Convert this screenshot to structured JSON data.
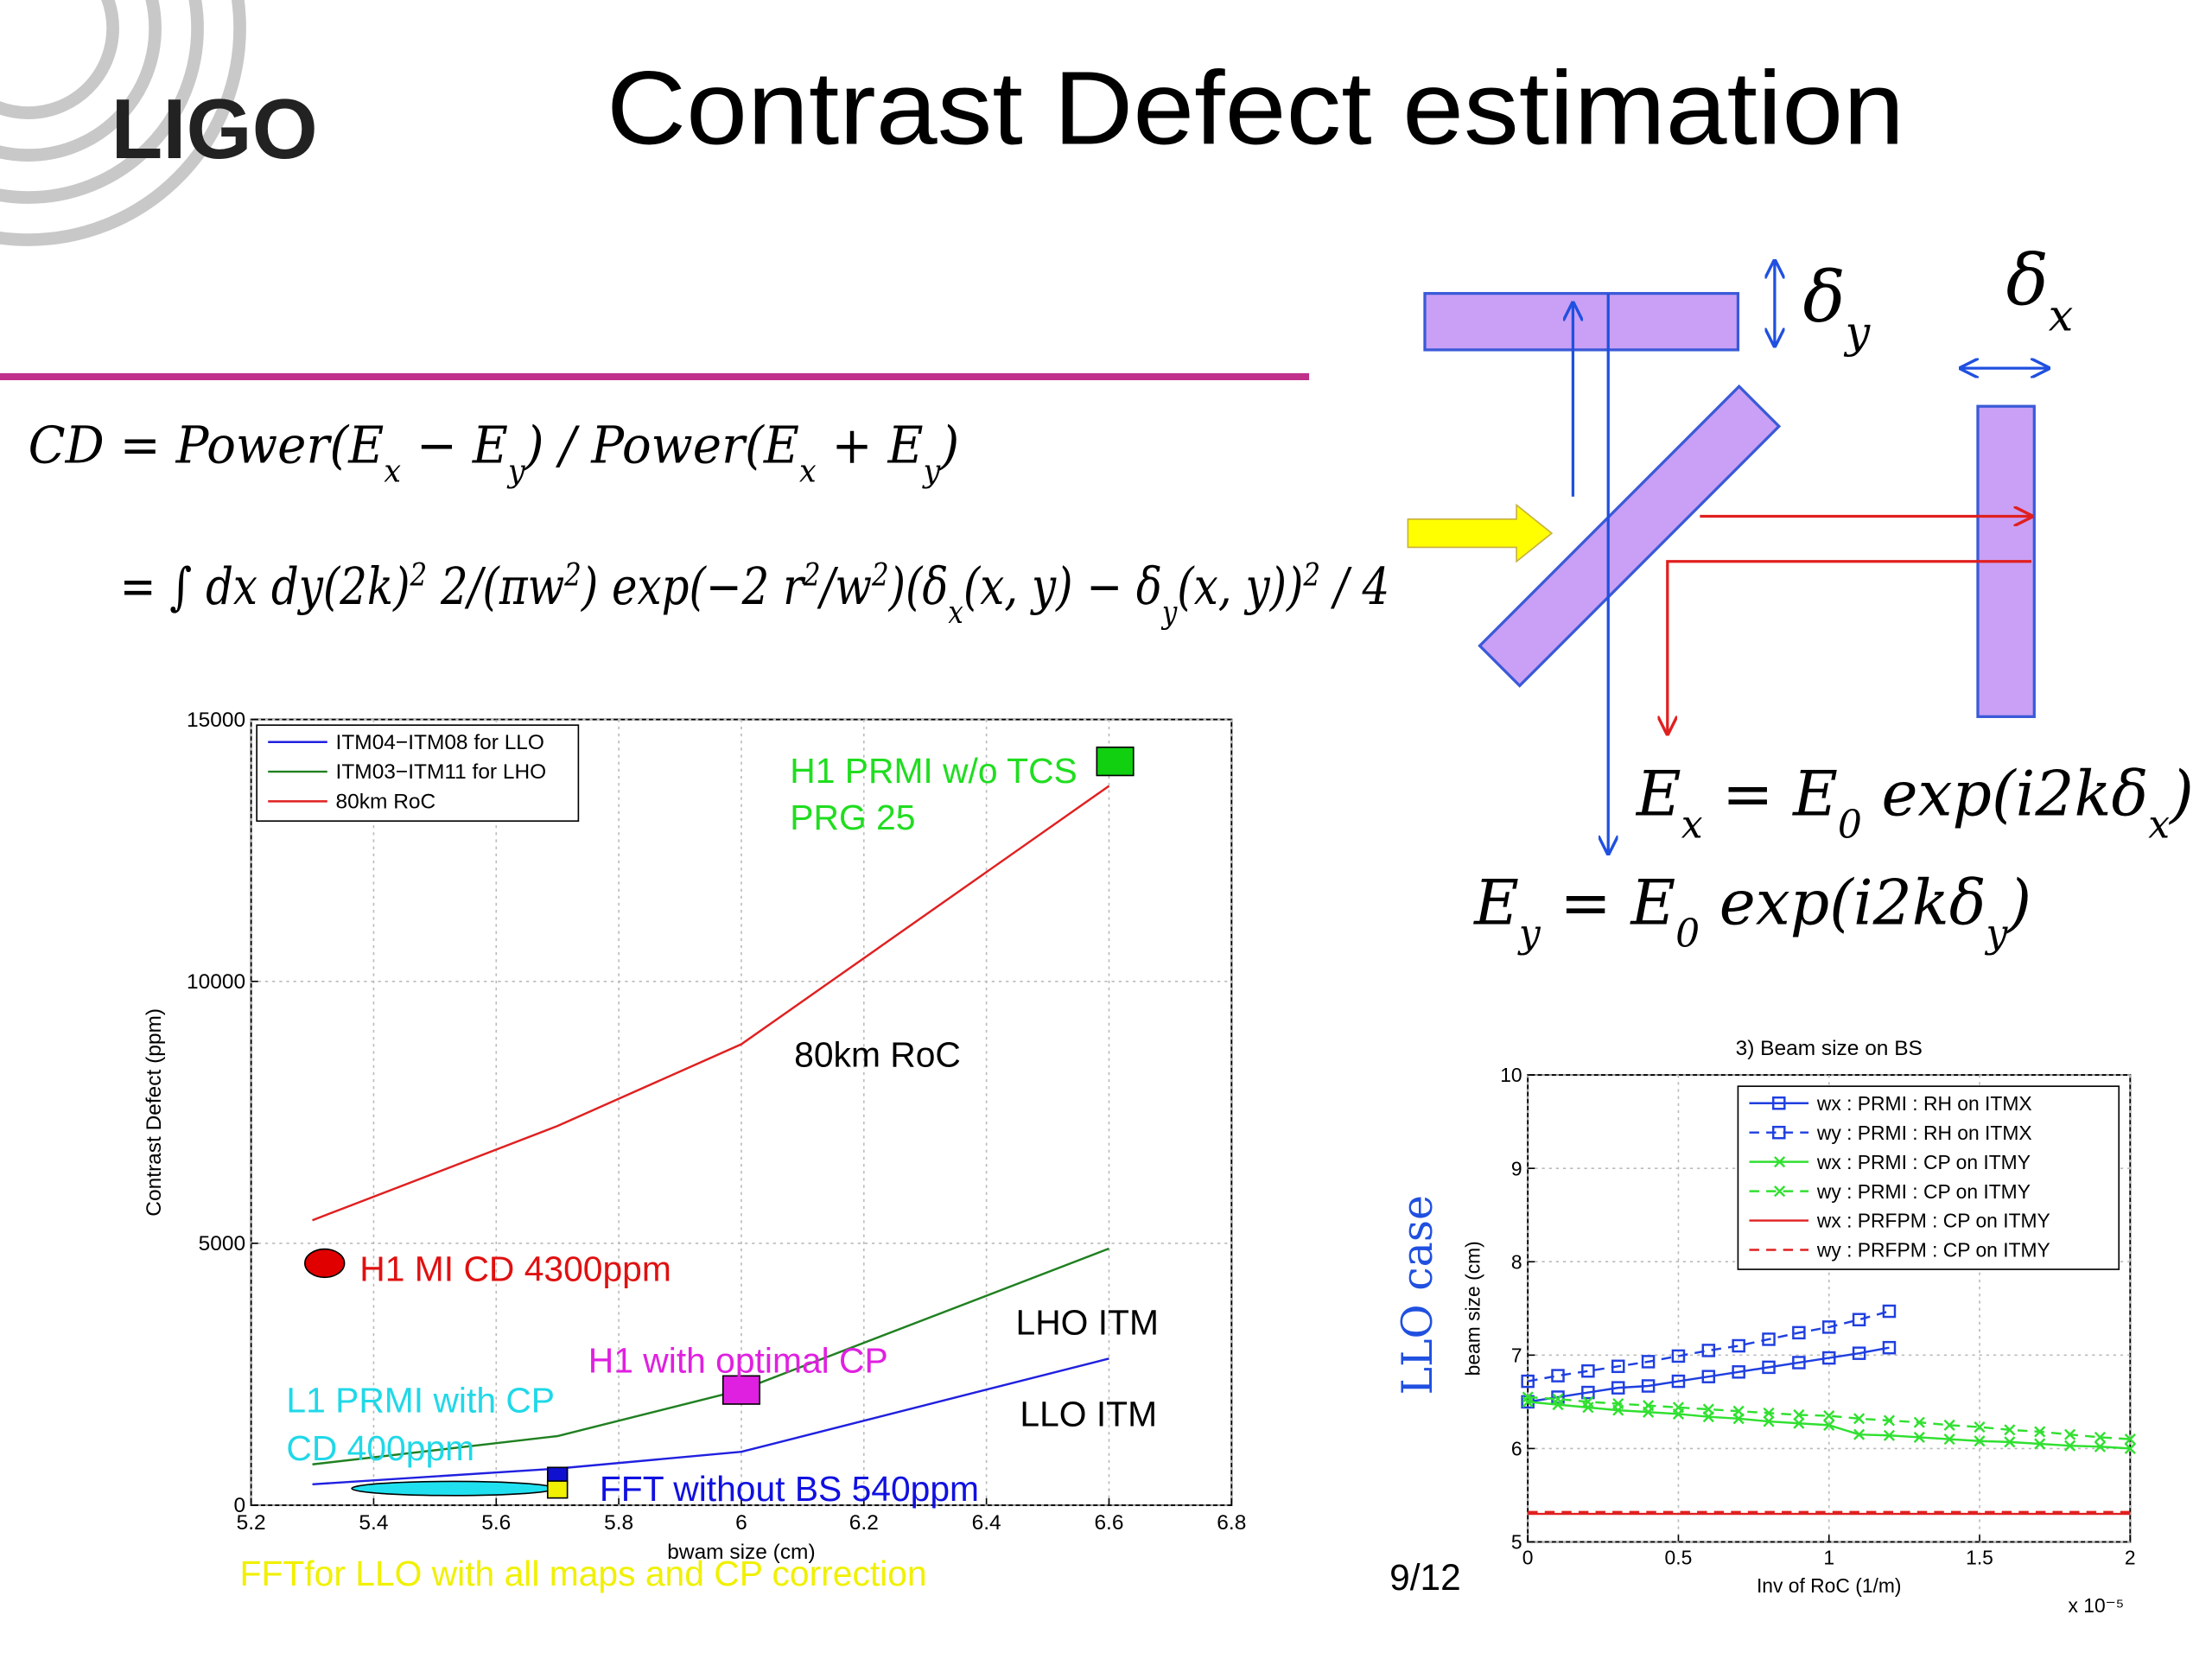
{
  "header": {
    "logo": "LIGO",
    "title": "Contrast Defect estimation"
  },
  "equations": [
    [
      {
        "text": "CD = Power(E"
      },
      {
        "text": "x",
        "pos": "sub"
      },
      {
        "text": " − E"
      },
      {
        "text": "y",
        "pos": "sub"
      },
      {
        "text": ") / Power(E"
      },
      {
        "text": "x",
        "pos": "sub"
      },
      {
        "text": " + E"
      },
      {
        "text": "y",
        "pos": "sub"
      },
      {
        "text": ")"
      }
    ],
    [
      {
        "text": "= ∫ dx dy(2k)"
      },
      {
        "text": "2",
        "pos": "sup"
      },
      {
        "text": " 2/(πw"
      },
      {
        "text": "2",
        "pos": "sup"
      },
      {
        "text": ") exp(−2 r"
      },
      {
        "text": "2",
        "pos": "sup"
      },
      {
        "text": "/w"
      },
      {
        "text": "2",
        "pos": "sup"
      },
      {
        "text": ")(δ"
      },
      {
        "text": "x",
        "pos": "sub"
      },
      {
        "text": "(x, y) − δ"
      },
      {
        "text": "y",
        "pos": "sub"
      },
      {
        "text": "(x, y))"
      },
      {
        "text": "2",
        "pos": "sup"
      },
      {
        "text": " / 4"
      }
    ]
  ],
  "diagram": {
    "delta_y": [
      {
        "text": "δ"
      },
      {
        "text": "y",
        "pos": "sub"
      }
    ],
    "delta_x": [
      {
        "text": "δ"
      },
      {
        "text": "x",
        "pos": "sub"
      }
    ],
    "field_x": [
      {
        "text": "E"
      },
      {
        "text": "x",
        "pos": "sub"
      },
      {
        "text": " = E"
      },
      {
        "text": "0",
        "pos": "sub"
      },
      {
        "text": " exp(i2kδ"
      },
      {
        "text": "x",
        "pos": "sub"
      },
      {
        "text": ")"
      }
    ],
    "field_y": [
      {
        "text": "E"
      },
      {
        "text": "y",
        "pos": "sub"
      },
      {
        "text": " = E"
      },
      {
        "text": "0",
        "pos": "sub"
      },
      {
        "text": " exp(i2kδ"
      },
      {
        "text": "y",
        "pos": "sub"
      },
      {
        "text": ")"
      }
    ]
  },
  "side_label": "LLO case",
  "page_number": "9/12",
  "chart_data": [
    {
      "type": "line",
      "xlabel": "bwam size (cm)",
      "ylabel": "Contrast Defect (ppm)",
      "x": [
        5.3,
        5.7,
        6.0,
        6.6
      ],
      "xlim": [
        5.2,
        6.8
      ],
      "xticks": [
        5.2,
        5.4,
        5.6,
        5.8,
        6,
        6.2,
        6.4,
        6.6,
        6.8
      ],
      "ylim": [
        0,
        15000
      ],
      "yticks": [
        0,
        5000,
        10000,
        15000
      ],
      "grid": true,
      "legend": "upper left",
      "series": [
        {
          "name": "ITM04−ITM08 for LLO",
          "color": "#2020e0",
          "values": [
            400,
            700,
            1020,
            2800
          ]
        },
        {
          "name": "ITM03−ITM11 for LHO",
          "color": "#208020",
          "values": [
            780,
            1320,
            2200,
            4900
          ]
        },
        {
          "name": "80km RoC",
          "color": "#e02020",
          "values": [
            5440,
            7240,
            8800,
            13730
          ]
        }
      ],
      "markers": [
        {
          "x": 5.32,
          "y": 4620,
          "color": "#e00000",
          "shape": "ellipse"
        },
        {
          "x": 6.61,
          "y": 14200,
          "color": "#10d010",
          "shape": "square"
        },
        {
          "x": 6.0,
          "y": 2200,
          "color": "#e020e0",
          "shape": "square"
        },
        {
          "x": 5.53,
          "y": 320,
          "color": "#20e0f0",
          "shape": "wide-ellipse"
        },
        {
          "x": 5.7,
          "y": 560,
          "color": "#1010d0",
          "shape": "small-square"
        },
        {
          "x": 5.7,
          "y": 300,
          "color": "#f0f000",
          "shape": "small-square"
        }
      ],
      "annotations": [
        {
          "text": "H1 PRMI w/o TCS",
          "color": "#20dd20"
        },
        {
          "text": "PRG 25",
          "color": "#20dd20"
        },
        {
          "text": "80km RoC",
          "color": "#000000"
        },
        {
          "text": "H1 MI CD 4300ppm",
          "color": "#e01010"
        },
        {
          "text": "LHO ITM",
          "color": "#000000"
        },
        {
          "text": "LLO ITM",
          "color": "#000000"
        },
        {
          "text": "H1 with optimal CP",
          "color": "#e020e0"
        },
        {
          "text": "L1 PRMI with CP",
          "color": "#20d8e8"
        },
        {
          "text": "CD 400ppm",
          "color": "#20d8e8"
        },
        {
          "text": "FFT without BS 540ppm",
          "color": "#1010e0"
        },
        {
          "text": "FFTfor LLO with all maps and CP correction",
          "color": "#f0f000"
        }
      ]
    },
    {
      "type": "line",
      "title": "3) Beam size on BS",
      "xlabel": "Inv of RoC (1/m)",
      "ylabel": "beam size (cm)",
      "x_multiplier": "x 10⁻⁵",
      "xlim": [
        0,
        2
      ],
      "xticks": [
        0,
        0.5,
        1,
        1.5,
        2
      ],
      "ylim": [
        5,
        10
      ],
      "yticks": [
        5,
        6,
        7,
        8,
        9,
        10
      ],
      "grid": true,
      "legend": "upper right",
      "series": [
        {
          "name": "wx : PRMI : RH on ITMX",
          "color": "#1f3fe0",
          "dash": false,
          "marker": "square",
          "x": [
            0,
            0.1,
            0.2,
            0.3,
            0.4,
            0.5,
            0.6,
            0.7,
            0.8,
            0.9,
            1.0,
            1.1,
            1.2
          ],
          "values": [
            6.5,
            6.55,
            6.6,
            6.65,
            6.67,
            6.72,
            6.77,
            6.82,
            6.87,
            6.92,
            6.97,
            7.02,
            7.08
          ]
        },
        {
          "name": "wy : PRMI : RH on ITMX",
          "color": "#1f3fe0",
          "dash": true,
          "marker": "square",
          "x": [
            0,
            0.1,
            0.2,
            0.3,
            0.4,
            0.5,
            0.6,
            0.7,
            0.8,
            0.9,
            1.0,
            1.1,
            1.2
          ],
          "values": [
            6.72,
            6.78,
            6.83,
            6.88,
            6.93,
            6.99,
            7.05,
            7.1,
            7.17,
            7.24,
            7.3,
            7.38,
            7.47
          ]
        },
        {
          "name": "wx : PRMI : CP on ITMY",
          "color": "#30e030",
          "dash": false,
          "marker": "x",
          "x": [
            0,
            0.1,
            0.2,
            0.3,
            0.4,
            0.5,
            0.6,
            0.7,
            0.8,
            0.9,
            1.0,
            1.1,
            1.2,
            1.3,
            1.4,
            1.5,
            1.6,
            1.7,
            1.8,
            1.9,
            2.0
          ],
          "values": [
            6.5,
            6.47,
            6.44,
            6.41,
            6.39,
            6.37,
            6.34,
            6.32,
            6.29,
            6.27,
            6.25,
            6.15,
            6.14,
            6.12,
            6.1,
            6.08,
            6.07,
            6.05,
            6.03,
            6.02,
            6.0
          ]
        },
        {
          "name": "wy : PRMI : CP on ITMY",
          "color": "#30e030",
          "dash": true,
          "marker": "x",
          "x": [
            0,
            0.1,
            0.2,
            0.3,
            0.4,
            0.5,
            0.6,
            0.7,
            0.8,
            0.9,
            1.0,
            1.1,
            1.2,
            1.3,
            1.4,
            1.5,
            1.6,
            1.7,
            1.8,
            1.9,
            2.0
          ],
          "values": [
            6.55,
            6.53,
            6.5,
            6.48,
            6.46,
            6.44,
            6.42,
            6.4,
            6.38,
            6.36,
            6.35,
            6.32,
            6.3,
            6.28,
            6.25,
            6.23,
            6.2,
            6.18,
            6.15,
            6.12,
            6.1
          ]
        },
        {
          "name": "wx : PRFPM : CP on ITMY",
          "color": "#e02020",
          "dash": false,
          "x": [
            0,
            2
          ],
          "values": [
            5.3,
            5.3
          ]
        },
        {
          "name": "wy : PRFPM : CP on ITMY",
          "color": "#e02020",
          "dash": true,
          "x": [
            0,
            2
          ],
          "values": [
            5.32,
            5.32
          ]
        }
      ]
    }
  ]
}
